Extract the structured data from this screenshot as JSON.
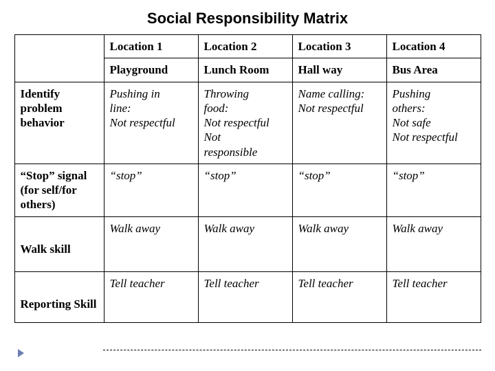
{
  "title": "Social Responsibility Matrix",
  "columns": {
    "loc1_num": "Location 1",
    "loc2_num": "Location 2",
    "loc3_num": "Location 3",
    "loc4_num": "Location 4",
    "loc1_name": "Playground",
    "loc2_name": "Lunch Room",
    "loc3_name": "Hall way",
    "loc4_name": "Bus Area"
  },
  "rows": {
    "r1": {
      "label_l1": "Identify",
      "label_l2": "problem",
      "label_l3": "behavior",
      "c1_l1": "Pushing in",
      "c1_l2": "line:",
      "c1_l3": "Not respectful",
      "c2_l1": "Throwing",
      "c2_l2": "food:",
      "c2_l3": "Not respectful",
      "c2_l4": "Not",
      "c2_l5": "responsible",
      "c3_l1": "Name calling:",
      "c3_l2": "Not respectful",
      "c4_l1": "Pushing",
      "c4_l2": "others:",
      "c4_l3": "Not safe",
      "c4_l4": "Not respectful"
    },
    "r2": {
      "label_l1": "“Stop” signal",
      "label_l2": "(for self/for",
      "label_l3": "others)",
      "c1": "“stop”",
      "c2": "“stop”",
      "c3": "“stop”",
      "c4": "“stop”"
    },
    "r3": {
      "label": "Walk skill",
      "c1": "Walk away",
      "c2": "Walk away",
      "c3": "Walk away",
      "c4": "Walk away"
    },
    "r4": {
      "label": "Reporting Skill",
      "c1": "Tell teacher",
      "c2": "Tell teacher",
      "c3": "Tell teacher",
      "c4": "Tell teacher"
    }
  }
}
